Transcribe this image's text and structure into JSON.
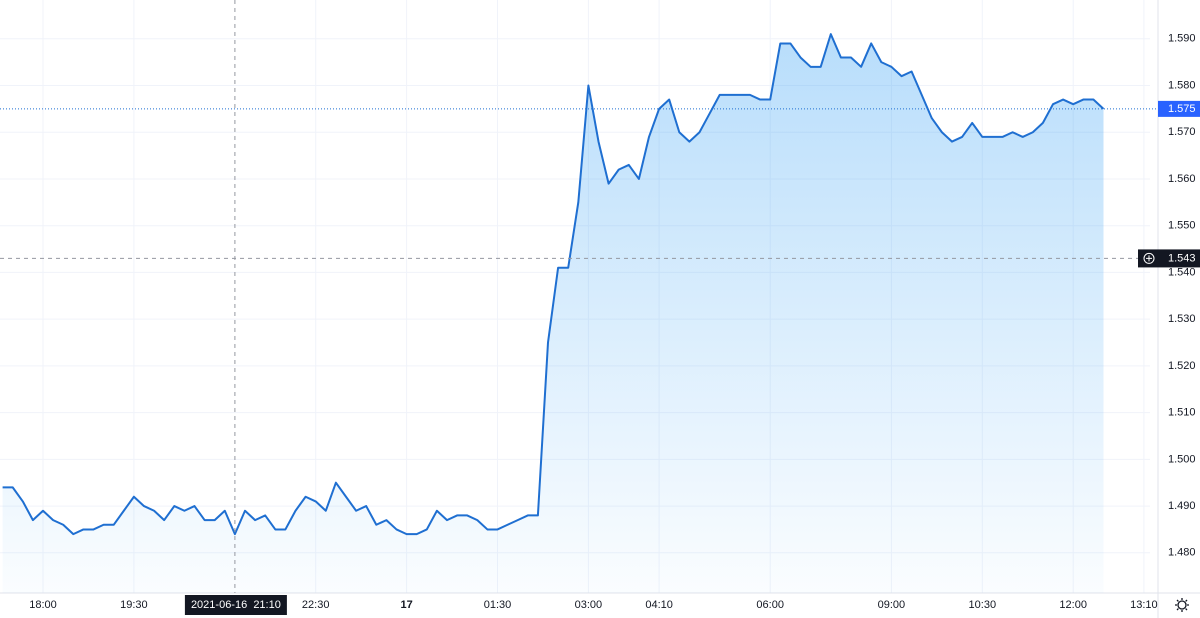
{
  "chart_data": {
    "type": "area",
    "x": [
      "17:20",
      "17:30",
      "17:40",
      "17:50",
      "18:00",
      "18:10",
      "18:20",
      "18:30",
      "18:40",
      "18:50",
      "19:00",
      "19:10",
      "19:20",
      "19:30",
      "19:40",
      "19:50",
      "20:00",
      "20:10",
      "20:20",
      "20:30",
      "20:40",
      "20:50",
      "21:00",
      "21:10",
      "21:20",
      "21:30",
      "21:40",
      "21:50",
      "22:00",
      "22:10",
      "22:20",
      "22:30",
      "22:40",
      "22:50",
      "23:00",
      "23:10",
      "23:20",
      "23:30",
      "23:40",
      "23:50",
      "00:00",
      "00:10",
      "00:20",
      "00:30",
      "00:40",
      "00:50",
      "01:00",
      "01:10",
      "01:20",
      "01:30",
      "01:40",
      "01:50",
      "02:00",
      "02:10",
      "02:20",
      "02:30",
      "02:40",
      "02:50",
      "03:00",
      "03:10",
      "03:20",
      "03:30",
      "03:40",
      "03:50",
      "04:00",
      "04:10",
      "04:20",
      "04:30",
      "04:40",
      "04:50",
      "05:00",
      "05:10",
      "05:20",
      "05:30",
      "05:40",
      "05:50",
      "06:00",
      "06:15",
      "06:30",
      "06:45",
      "07:00",
      "07:15",
      "07:30",
      "07:45",
      "08:00",
      "08:15",
      "08:30",
      "08:45",
      "09:00",
      "09:10",
      "09:20",
      "09:30",
      "09:40",
      "09:50",
      "10:00",
      "10:10",
      "10:20",
      "10:30",
      "10:40",
      "10:50",
      "11:00",
      "11:10",
      "11:20",
      "11:30",
      "11:40",
      "11:50",
      "12:00",
      "12:10",
      "12:20",
      "12:30",
      "12:40",
      "12:50",
      "13:00",
      "13:10"
    ],
    "series": [
      {
        "color": "#1f6fd1",
        "values": [
          1.494,
          1.494,
          1.491,
          1.487,
          1.489,
          1.487,
          1.486,
          1.484,
          1.485,
          1.485,
          1.486,
          1.486,
          1.489,
          1.492,
          1.49,
          1.489,
          1.487,
          1.49,
          1.489,
          1.49,
          1.487,
          1.487,
          1.489,
          1.484,
          1.489,
          1.487,
          1.488,
          1.485,
          1.485,
          1.489,
          1.492,
          1.491,
          1.489,
          1.495,
          1.492,
          1.489,
          1.49,
          1.486,
          1.487,
          1.485,
          1.484,
          1.484,
          1.485,
          1.489,
          1.487,
          1.488,
          1.488,
          1.487,
          1.485,
          1.485,
          1.486,
          1.487,
          1.488,
          1.488,
          1.525,
          1.541,
          1.541,
          1.555,
          1.58,
          1.568,
          1.559,
          1.562,
          1.563,
          1.56,
          1.569,
          1.575,
          1.577,
          1.57,
          1.568,
          1.57,
          1.574,
          1.578,
          1.578,
          1.578,
          1.578,
          1.577,
          1.577,
          1.589,
          1.589,
          1.586,
          1.584,
          1.584,
          1.591,
          1.586,
          1.586,
          1.584,
          1.589,
          1.585,
          1.584,
          1.582,
          1.583,
          1.578,
          1.573,
          1.57,
          1.568,
          1.569,
          1.572,
          1.569,
          1.569,
          1.569,
          1.57,
          1.569,
          1.57,
          1.572,
          1.576,
          1.577,
          1.576,
          1.577,
          1.577,
          1.575,
          null,
          null,
          null,
          null
        ]
      }
    ],
    "ylim": [
      1.4714,
      1.5983
    ],
    "yticks": [
      {
        "value": 1.48,
        "label": "1.480"
      },
      {
        "value": 1.49,
        "label": "1.490"
      },
      {
        "value": 1.5,
        "label": "1.500"
      },
      {
        "value": 1.51,
        "label": "1.510"
      },
      {
        "value": 1.52,
        "label": "1.520"
      },
      {
        "value": 1.53,
        "label": "1.530"
      },
      {
        "value": 1.54,
        "label": "1.540"
      },
      {
        "value": 1.55,
        "label": "1.550"
      },
      {
        "value": 1.56,
        "label": "1.560"
      },
      {
        "value": 1.57,
        "label": "1.570"
      },
      {
        "value": 1.58,
        "label": "1.580"
      },
      {
        "value": 1.59,
        "label": "1.590"
      }
    ],
    "xticks": [
      "18:00",
      "19:30",
      "22:30",
      {
        "value": "00:00",
        "label": "17"
      },
      "01:30",
      "03:00",
      "04:10",
      "06:00",
      "09:00",
      "10:30",
      "12:00",
      "13:10"
    ],
    "grid": true,
    "last_price": 1.575,
    "crosshair": {
      "label": "2021-06-16  21:10",
      "y": 1.543
    }
  }
}
